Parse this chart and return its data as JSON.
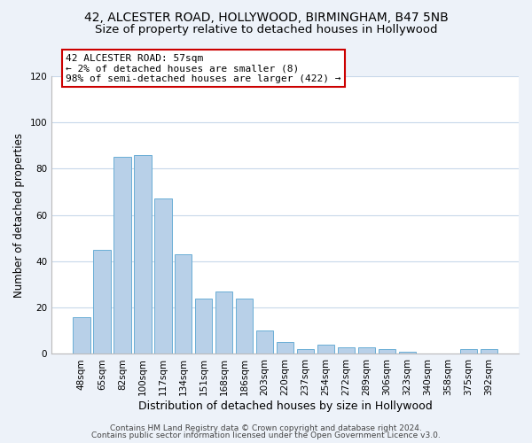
{
  "title1": "42, ALCESTER ROAD, HOLLYWOOD, BIRMINGHAM, B47 5NB",
  "title2": "Size of property relative to detached houses in Hollywood",
  "xlabel": "Distribution of detached houses by size in Hollywood",
  "ylabel": "Number of detached properties",
  "categories": [
    "48sqm",
    "65sqm",
    "82sqm",
    "100sqm",
    "117sqm",
    "134sqm",
    "151sqm",
    "168sqm",
    "186sqm",
    "203sqm",
    "220sqm",
    "237sqm",
    "254sqm",
    "272sqm",
    "289sqm",
    "306sqm",
    "323sqm",
    "340sqm",
    "358sqm",
    "375sqm",
    "392sqm"
  ],
  "values": [
    16,
    45,
    85,
    86,
    67,
    43,
    24,
    27,
    24,
    10,
    5,
    2,
    4,
    3,
    3,
    2,
    1,
    0,
    0,
    2,
    2
  ],
  "bar_color": "#b8d0e8",
  "bar_edge_color": "#6aaed6",
  "annotation_box_text": "42 ALCESTER ROAD: 57sqm\n← 2% of detached houses are smaller (8)\n98% of semi-detached houses are larger (422) →",
  "annotation_box_color": "#ffffff",
  "annotation_box_edge_color": "#cc0000",
  "ylim": [
    0,
    120
  ],
  "yticks": [
    0,
    20,
    40,
    60,
    80,
    100,
    120
  ],
  "footer1": "Contains HM Land Registry data © Crown copyright and database right 2024.",
  "footer2": "Contains public sector information licensed under the Open Government Licence v3.0.",
  "bg_color": "#edf2f9",
  "plot_bg_color": "#ffffff",
  "grid_color": "#c8d8ea",
  "title_fontsize": 10,
  "subtitle_fontsize": 9.5,
  "xlabel_fontsize": 9,
  "ylabel_fontsize": 8.5,
  "tick_fontsize": 7.5,
  "footer_fontsize": 6.5,
  "ann_fontsize": 8.0
}
